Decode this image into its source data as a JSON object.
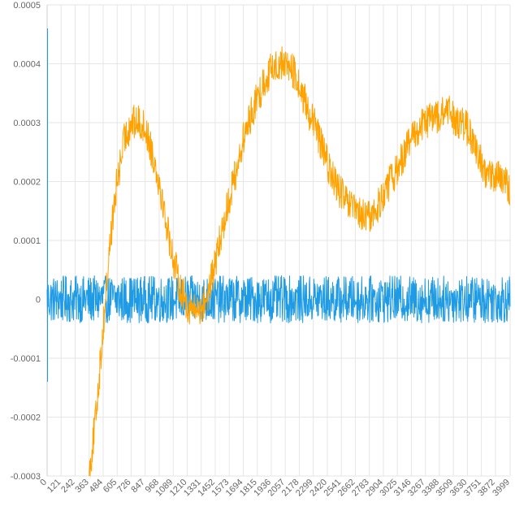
{
  "chart_data": {
    "type": "line",
    "title": "",
    "xlabel": "",
    "ylabel": "",
    "x_range": [
      0,
      3999
    ],
    "x_tick_labels": [
      "0",
      "121",
      "242",
      "363",
      "484",
      "605",
      "726",
      "847",
      "968",
      "1089",
      "1210",
      "1331",
      "1452",
      "1573",
      "1694",
      "1815",
      "1936",
      "2057",
      "2178",
      "2299",
      "2420",
      "2541",
      "2662",
      "2783",
      "2904",
      "3025",
      "3146",
      "3267",
      "3388",
      "3509",
      "3630",
      "3751",
      "3872",
      "3999"
    ],
    "ylim": [
      -0.0003,
      0.0005
    ],
    "y_tick_labels": [
      "0.0005",
      "0.0004",
      "0.0003",
      "0.0002",
      "0.0001",
      "0",
      "-0.0001",
      "-0.0002",
      "-0.0003"
    ],
    "grid": true,
    "legend": "none",
    "series": [
      {
        "color": "#1E9BE4",
        "noise_amplitude": 4e-05,
        "points": [
          [
            0,
            0
          ],
          [
            3999,
            0
          ]
        ]
      },
      {
        "color": "#FFA200",
        "noise_amplitude": 3e-05,
        "points": [
          [
            363,
            -0.0003
          ],
          [
            420,
            -0.0002
          ],
          [
            484,
            -5e-05
          ],
          [
            545,
            0.0001
          ],
          [
            605,
            0.0002
          ],
          [
            666,
            0.00027
          ],
          [
            726,
            0.0003
          ],
          [
            800,
            0.0003
          ],
          [
            847,
            0.00029
          ],
          [
            908,
            0.00025
          ],
          [
            968,
            0.0002
          ],
          [
            1029,
            0.00013
          ],
          [
            1089,
            7e-05
          ],
          [
            1150,
            2e-05
          ],
          [
            1210,
            -1e-05
          ],
          [
            1271,
            -2e-05
          ],
          [
            1331,
            -1.5e-05
          ],
          [
            1392,
            1e-05
          ],
          [
            1452,
            6e-05
          ],
          [
            1513,
            0.00012
          ],
          [
            1573,
            0.00017
          ],
          [
            1634,
            0.00022
          ],
          [
            1694,
            0.00027
          ],
          [
            1755,
            0.00031
          ],
          [
            1815,
            0.00034
          ],
          [
            1876,
            0.00037
          ],
          [
            1936,
            0.00039
          ],
          [
            1997,
            0.0004
          ],
          [
            2057,
            0.0004
          ],
          [
            2117,
            0.00039
          ],
          [
            2178,
            0.00036
          ],
          [
            2238,
            0.00033
          ],
          [
            2299,
            0.0003
          ],
          [
            2359,
            0.00027
          ],
          [
            2420,
            0.00023
          ],
          [
            2480,
            0.0002
          ],
          [
            2541,
            0.00018
          ],
          [
            2601,
            0.00016
          ],
          [
            2662,
            0.00015
          ],
          [
            2722,
            0.00014
          ],
          [
            2783,
            0.00014
          ],
          [
            2843,
            0.00015
          ],
          [
            2904,
            0.00018
          ],
          [
            2964,
            0.0002
          ],
          [
            3025,
            0.00022
          ],
          [
            3085,
            0.00025
          ],
          [
            3146,
            0.00027
          ],
          [
            3206,
            0.00029
          ],
          [
            3267,
            0.0003
          ],
          [
            3328,
            0.00031
          ],
          [
            3388,
            0.00031
          ],
          [
            3449,
            0.00032
          ],
          [
            3509,
            0.00031
          ],
          [
            3569,
            0.0003
          ],
          [
            3630,
            0.00029
          ],
          [
            3690,
            0.00026
          ],
          [
            3751,
            0.00023
          ],
          [
            3811,
            0.00021
          ],
          [
            3872,
            0.00021
          ],
          [
            3932,
            0.0002
          ],
          [
            3999,
            0.00019
          ]
        ]
      }
    ]
  }
}
